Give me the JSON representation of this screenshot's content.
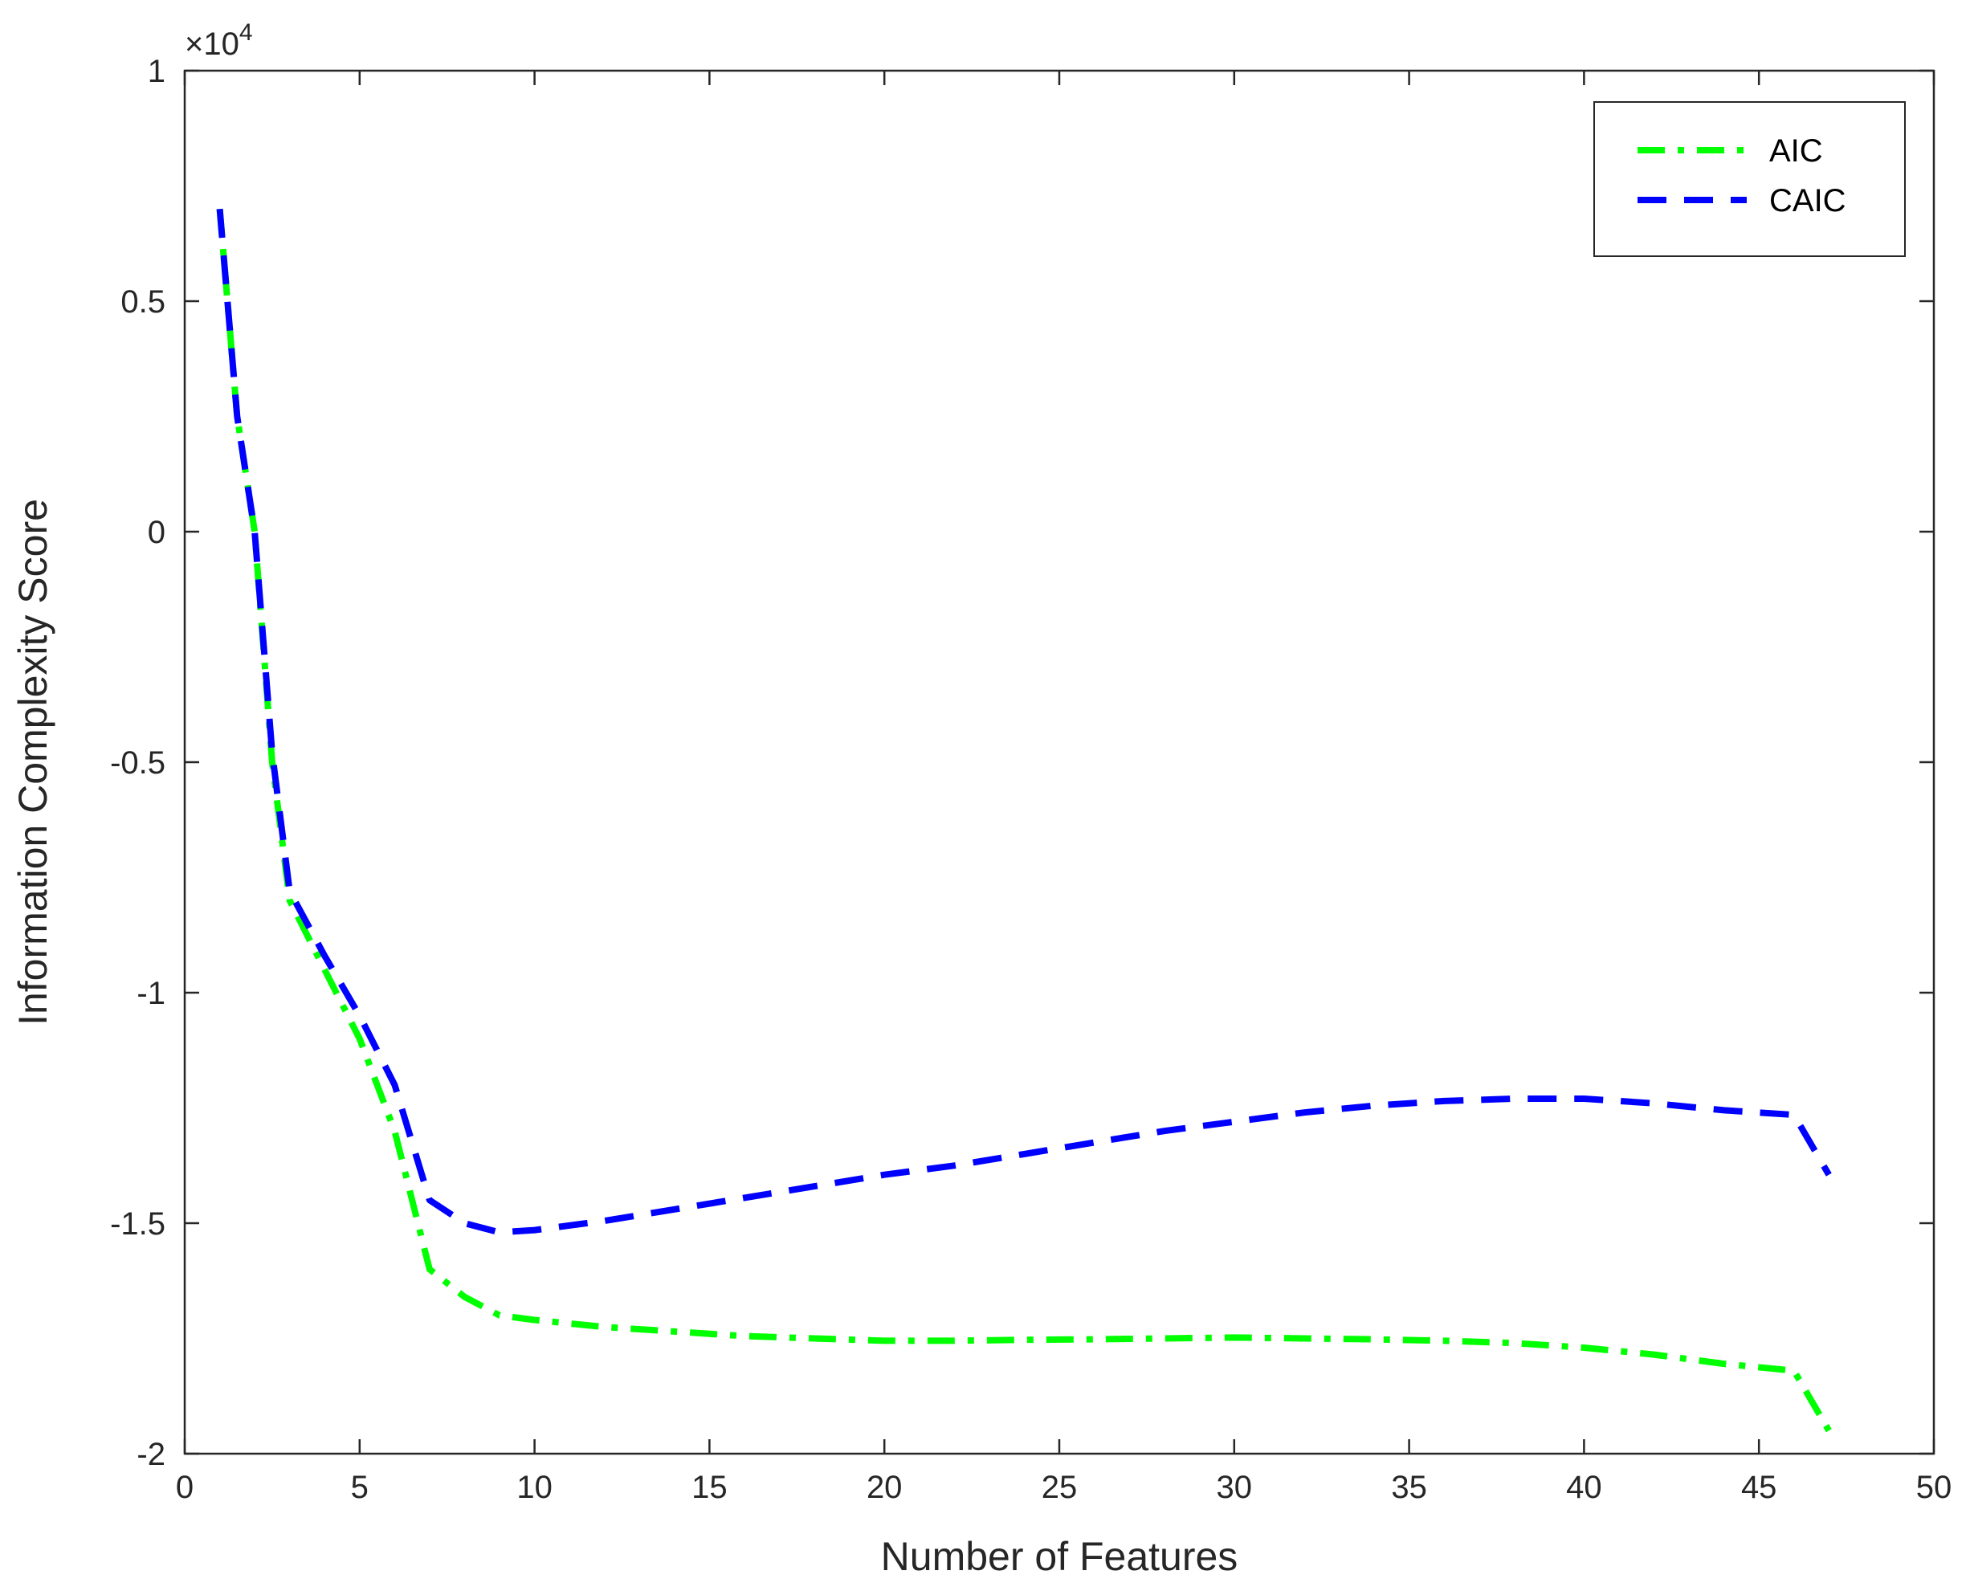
{
  "chart_data": {
    "type": "line",
    "title": "",
    "xlabel": "Number of Features",
    "ylabel": "Information Complexity Score",
    "xlim": [
      0,
      50
    ],
    "ylim": [
      -20000,
      10000
    ],
    "x_ticks": [
      0,
      5,
      10,
      15,
      20,
      25,
      30,
      35,
      40,
      45,
      50
    ],
    "y_ticks": [
      -20000,
      -15000,
      -10000,
      -5000,
      0,
      5000,
      10000
    ],
    "x_tick_labels": [
      "0",
      "5",
      "10",
      "15",
      "20",
      "25",
      "30",
      "35",
      "40",
      "45",
      "50"
    ],
    "y_tick_labels": [
      "-2",
      "-1.5",
      "-1",
      "-0.5",
      "0",
      "0.5",
      "1"
    ],
    "y_exponent": {
      "base": "×10",
      "power": "4"
    },
    "grid": false,
    "legend_position": "top-right",
    "series": [
      {
        "name": "AIC",
        "color": "#00ff00",
        "dash": "dash-dot",
        "x": [
          1,
          1.5,
          2,
          2.5,
          3,
          4,
          5,
          6,
          7,
          8,
          9,
          10,
          12,
          14,
          16,
          18,
          20,
          22,
          24,
          26,
          28,
          30,
          32,
          34,
          36,
          38,
          40,
          42,
          44,
          46,
          47
        ],
        "y": [
          7000,
          2500,
          0,
          -5000,
          -8000,
          -9500,
          -11000,
          -13000,
          -16000,
          -16600,
          -17000,
          -17100,
          -17250,
          -17350,
          -17450,
          -17500,
          -17550,
          -17550,
          -17530,
          -17520,
          -17500,
          -17480,
          -17500,
          -17520,
          -17550,
          -17600,
          -17700,
          -17850,
          -18050,
          -18200,
          -19500
        ]
      },
      {
        "name": "CAIC",
        "color": "#0000ff",
        "dash": "dash",
        "x": [
          1,
          1.5,
          2,
          2.5,
          3,
          4,
          5,
          6,
          7,
          8,
          9,
          10,
          12,
          14,
          16,
          18,
          20,
          22,
          24,
          26,
          28,
          30,
          32,
          34,
          36,
          38,
          40,
          42,
          44,
          46,
          47
        ],
        "y": [
          7000,
          2500,
          0,
          -4800,
          -7800,
          -9200,
          -10500,
          -12000,
          -14500,
          -15000,
          -15200,
          -15150,
          -14950,
          -14700,
          -14450,
          -14200,
          -13950,
          -13750,
          -13500,
          -13250,
          -13000,
          -12800,
          -12600,
          -12450,
          -12350,
          -12300,
          -12300,
          -12400,
          -12550,
          -12650,
          -13950
        ]
      }
    ]
  }
}
